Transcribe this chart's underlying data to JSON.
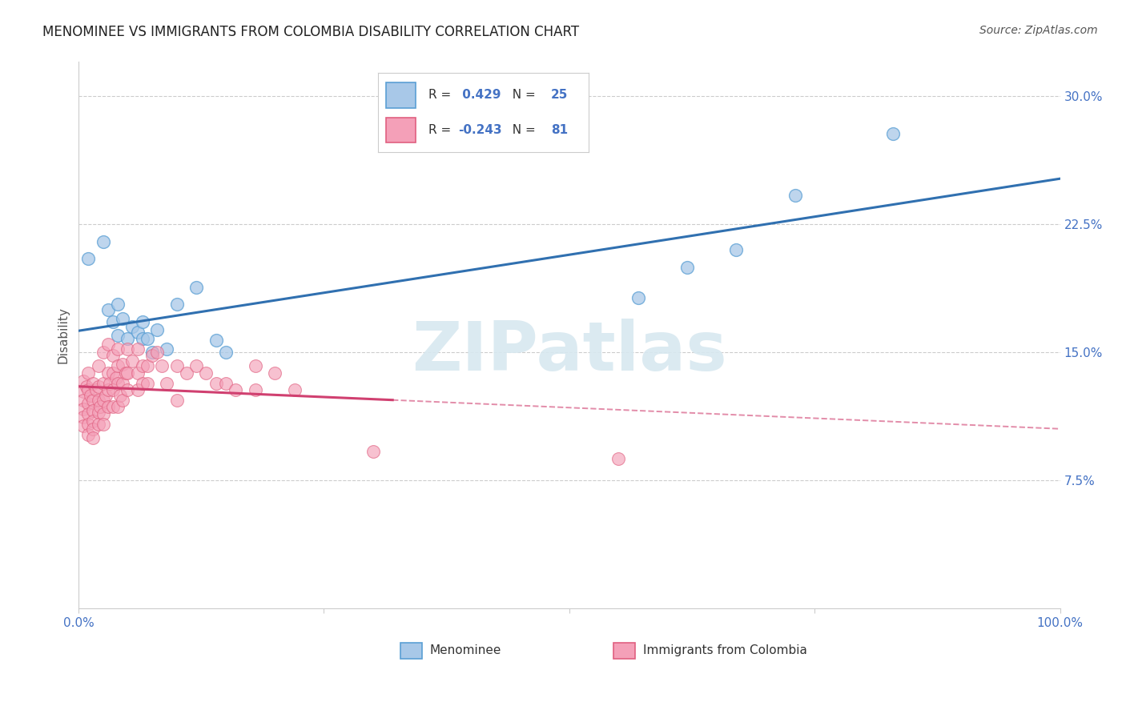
{
  "title": "MENOMINEE VS IMMIGRANTS FROM COLOMBIA DISABILITY CORRELATION CHART",
  "source": "Source: ZipAtlas.com",
  "ylabel": "Disability",
  "blue_R": 0.429,
  "blue_N": 25,
  "pink_R": -0.243,
  "pink_N": 81,
  "blue_color": "#a8c8e8",
  "blue_edge_color": "#5a9fd4",
  "pink_color": "#f4a0b8",
  "pink_edge_color": "#e06080",
  "blue_line_color": "#3070b0",
  "pink_line_color": "#d04070",
  "blue_scatter": [
    [
      0.01,
      0.205
    ],
    [
      0.025,
      0.215
    ],
    [
      0.03,
      0.175
    ],
    [
      0.035,
      0.168
    ],
    [
      0.04,
      0.178
    ],
    [
      0.04,
      0.16
    ],
    [
      0.045,
      0.17
    ],
    [
      0.05,
      0.158
    ],
    [
      0.055,
      0.165
    ],
    [
      0.06,
      0.162
    ],
    [
      0.065,
      0.158
    ],
    [
      0.065,
      0.168
    ],
    [
      0.07,
      0.158
    ],
    [
      0.075,
      0.15
    ],
    [
      0.08,
      0.163
    ],
    [
      0.09,
      0.152
    ],
    [
      0.1,
      0.178
    ],
    [
      0.12,
      0.188
    ],
    [
      0.14,
      0.157
    ],
    [
      0.15,
      0.15
    ],
    [
      0.57,
      0.182
    ],
    [
      0.62,
      0.2
    ],
    [
      0.67,
      0.21
    ],
    [
      0.73,
      0.242
    ],
    [
      0.83,
      0.278
    ]
  ],
  "pink_scatter": [
    [
      0.005,
      0.133
    ],
    [
      0.005,
      0.127
    ],
    [
      0.005,
      0.122
    ],
    [
      0.005,
      0.117
    ],
    [
      0.005,
      0.112
    ],
    [
      0.005,
      0.107
    ],
    [
      0.008,
      0.13
    ],
    [
      0.01,
      0.138
    ],
    [
      0.01,
      0.128
    ],
    [
      0.01,
      0.12
    ],
    [
      0.01,
      0.114
    ],
    [
      0.01,
      0.108
    ],
    [
      0.01,
      0.102
    ],
    [
      0.012,
      0.125
    ],
    [
      0.015,
      0.132
    ],
    [
      0.015,
      0.122
    ],
    [
      0.015,
      0.116
    ],
    [
      0.015,
      0.11
    ],
    [
      0.015,
      0.105
    ],
    [
      0.015,
      0.1
    ],
    [
      0.018,
      0.128
    ],
    [
      0.02,
      0.142
    ],
    [
      0.02,
      0.13
    ],
    [
      0.02,
      0.122
    ],
    [
      0.02,
      0.115
    ],
    [
      0.02,
      0.108
    ],
    [
      0.022,
      0.118
    ],
    [
      0.025,
      0.15
    ],
    [
      0.025,
      0.132
    ],
    [
      0.025,
      0.122
    ],
    [
      0.025,
      0.114
    ],
    [
      0.025,
      0.108
    ],
    [
      0.028,
      0.125
    ],
    [
      0.03,
      0.155
    ],
    [
      0.03,
      0.138
    ],
    [
      0.03,
      0.128
    ],
    [
      0.03,
      0.118
    ],
    [
      0.032,
      0.132
    ],
    [
      0.035,
      0.148
    ],
    [
      0.035,
      0.138
    ],
    [
      0.035,
      0.128
    ],
    [
      0.035,
      0.118
    ],
    [
      0.038,
      0.135
    ],
    [
      0.04,
      0.152
    ],
    [
      0.04,
      0.142
    ],
    [
      0.04,
      0.132
    ],
    [
      0.04,
      0.118
    ],
    [
      0.042,
      0.125
    ],
    [
      0.045,
      0.143
    ],
    [
      0.045,
      0.132
    ],
    [
      0.045,
      0.122
    ],
    [
      0.048,
      0.138
    ],
    [
      0.05,
      0.152
    ],
    [
      0.05,
      0.138
    ],
    [
      0.05,
      0.128
    ],
    [
      0.055,
      0.145
    ],
    [
      0.06,
      0.152
    ],
    [
      0.06,
      0.138
    ],
    [
      0.06,
      0.128
    ],
    [
      0.065,
      0.142
    ],
    [
      0.065,
      0.132
    ],
    [
      0.07,
      0.142
    ],
    [
      0.07,
      0.132
    ],
    [
      0.075,
      0.148
    ],
    [
      0.08,
      0.15
    ],
    [
      0.085,
      0.142
    ],
    [
      0.09,
      0.132
    ],
    [
      0.1,
      0.142
    ],
    [
      0.1,
      0.122
    ],
    [
      0.11,
      0.138
    ],
    [
      0.12,
      0.142
    ],
    [
      0.13,
      0.138
    ],
    [
      0.14,
      0.132
    ],
    [
      0.15,
      0.132
    ],
    [
      0.16,
      0.128
    ],
    [
      0.18,
      0.142
    ],
    [
      0.18,
      0.128
    ],
    [
      0.2,
      0.138
    ],
    [
      0.22,
      0.128
    ],
    [
      0.3,
      0.092
    ],
    [
      0.55,
      0.088
    ]
  ],
  "xlim": [
    0.0,
    1.0
  ],
  "ylim": [
    0.0,
    0.32
  ],
  "yticks": [
    0.075,
    0.15,
    0.225,
    0.3
  ],
  "yticklabels": [
    "7.5%",
    "15.0%",
    "22.5%",
    "30.0%"
  ],
  "xticks": [
    0.0,
    0.25,
    0.5,
    0.75,
    1.0
  ],
  "xticklabels": [
    "0.0%",
    "",
    "",
    "",
    "100.0%"
  ],
  "background_color": "#ffffff",
  "grid_color": "#cccccc",
  "watermark_text": "ZIPatlas",
  "title_fontsize": 12,
  "source_fontsize": 10,
  "tick_fontsize": 11,
  "ylabel_fontsize": 11
}
